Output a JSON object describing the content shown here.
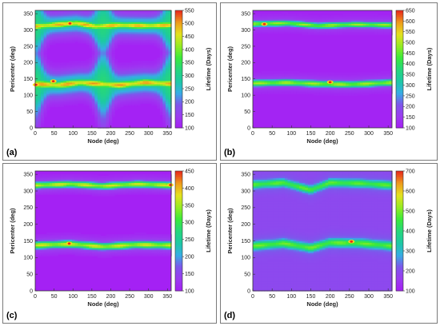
{
  "colors": {
    "scale": [
      "#a51ff4",
      "#9b3cf0",
      "#7f55ec",
      "#36aee4",
      "#1dc9a4",
      "#26d67c",
      "#3bea3a",
      "#96ec22",
      "#e4e21e",
      "#ee9b1c",
      "#e8271c"
    ],
    "highlight": "#ffd21c",
    "hotspot": "#e8271c"
  },
  "chart_data": [
    {
      "type": "heatmap",
      "panel_label": "(a)",
      "xlabel": "Node (deg)",
      "ylabel": "Pericenter (deg)",
      "colorbar_label": "Lifetime (Days)",
      "x_ticks": [
        "0",
        "50",
        "100",
        "150",
        "200",
        "250",
        "300",
        "350"
      ],
      "y_ticks": [
        "0",
        "50",
        "100",
        "150",
        "200",
        "250",
        "300",
        "350"
      ],
      "xlim": [
        0,
        360
      ],
      "ylim": [
        0,
        360
      ],
      "colorbar_ticks": [
        "100",
        "150",
        "200",
        "250",
        "300",
        "350",
        "400",
        "450",
        "500",
        "550"
      ],
      "colorbar_range": [
        100,
        550
      ],
      "bands": [
        {
          "center": [
            [
              0,
              136
            ],
            [
              60,
              132
            ],
            [
              120,
              140
            ],
            [
              170,
              136
            ],
            [
              220,
              132
            ],
            [
              290,
              140
            ],
            [
              360,
              136
            ]
          ],
          "width": 13,
          "spread": 38,
          "halo": 0.85,
          "wide_at_nodes": [
            0,
            180,
            360
          ],
          "peak": 480
        },
        {
          "center": [
            [
              0,
              312
            ],
            [
              60,
              318
            ],
            [
              110,
              322
            ],
            [
              160,
              312
            ],
            [
              220,
              316
            ],
            [
              300,
              314
            ],
            [
              360,
              316
            ]
          ],
          "width": 12,
          "spread": 34,
          "halo": 0.85,
          "wide_at_nodes": [
            0,
            180,
            360
          ],
          "peak": 470
        }
      ],
      "background": 105,
      "hotspots": [
        {
          "node": 2,
          "pericenter": 132
        },
        {
          "node": 48,
          "pericenter": 143
        },
        {
          "node": 92,
          "pericenter": 320
        }
      ]
    },
    {
      "type": "heatmap",
      "panel_label": "(b)",
      "xlabel": "Node (deg)",
      "ylabel": "Pericenter (deg)",
      "colorbar_label": "Lifetime (Days)",
      "x_ticks": [
        "0",
        "50",
        "100",
        "150",
        "200",
        "250",
        "300",
        "350"
      ],
      "y_ticks": [
        "0",
        "50",
        "100",
        "150",
        "200",
        "250",
        "300",
        "350"
      ],
      "xlim": [
        0,
        360
      ],
      "ylim": [
        0,
        360
      ],
      "colorbar_ticks": [
        "100",
        "150",
        "200",
        "250",
        "300",
        "350",
        "400",
        "450",
        "500",
        "550",
        "600",
        "650"
      ],
      "colorbar_range": [
        100,
        650
      ],
      "bands": [
        {
          "center": [
            [
              0,
              138
            ],
            [
              90,
              140
            ],
            [
              170,
              136
            ],
            [
              250,
              134
            ],
            [
              360,
              140
            ]
          ],
          "width": 10,
          "spread": 22,
          "halo": 0.35,
          "wide_at_nodes": [],
          "peak": 480
        },
        {
          "center": [
            [
              0,
              320
            ],
            [
              90,
              322
            ],
            [
              170,
              314
            ],
            [
              260,
              318
            ],
            [
              360,
              316
            ]
          ],
          "width": 9,
          "spread": 20,
          "halo": 0.35,
          "wide_at_nodes": [],
          "peak": 470
        }
      ],
      "background": 110,
      "hotspots": [
        {
          "node": 30,
          "pericenter": 318
        },
        {
          "node": 200,
          "pericenter": 140
        }
      ]
    },
    {
      "type": "heatmap",
      "panel_label": "(c)",
      "xlabel": "Node (deg)",
      "ylabel": "Pericenter (deg)",
      "colorbar_label": "Lifetime (Days)",
      "x_ticks": [
        "0",
        "50",
        "100",
        "150",
        "200",
        "250",
        "300",
        "350"
      ],
      "y_ticks": [
        "0",
        "50",
        "100",
        "150",
        "200",
        "250",
        "300",
        "350"
      ],
      "xlim": [
        0,
        360
      ],
      "ylim": [
        0,
        360
      ],
      "colorbar_ticks": [
        "100",
        "150",
        "200",
        "250",
        "300",
        "350",
        "400",
        "450"
      ],
      "colorbar_range": [
        100,
        450
      ],
      "bands": [
        {
          "center": [
            [
              0,
              138
            ],
            [
              90,
              142
            ],
            [
              180,
              134
            ],
            [
              270,
              140
            ],
            [
              360,
              138
            ]
          ],
          "width": 11,
          "spread": 24,
          "halo": 0.4,
          "wide_at_nodes": [],
          "peak": 360
        },
        {
          "center": [
            [
              0,
              318
            ],
            [
              90,
              322
            ],
            [
              180,
              316
            ],
            [
              270,
              322
            ],
            [
              360,
              318
            ]
          ],
          "width": 10,
          "spread": 22,
          "halo": 0.4,
          "wide_at_nodes": [],
          "peak": 360
        }
      ],
      "background": 102,
      "hotspots": [
        {
          "node": 90,
          "pericenter": 142
        },
        {
          "node": 358,
          "pericenter": 318
        }
      ]
    },
    {
      "type": "heatmap",
      "panel_label": "(d)",
      "xlabel": "Node (deg)",
      "ylabel": "Pericenter (deg)",
      "colorbar_label": "Lifetime (Days)",
      "x_ticks": [
        "0",
        "50",
        "100",
        "150",
        "200",
        "250",
        "300",
        "350"
      ],
      "y_ticks": [
        "0",
        "50",
        "100",
        "150",
        "200",
        "250",
        "300",
        "350"
      ],
      "xlim": [
        0,
        360
      ],
      "ylim": [
        0,
        360
      ],
      "colorbar_ticks": [
        "100",
        "200",
        "300",
        "400",
        "500",
        "600",
        "700"
      ],
      "colorbar_range": [
        100,
        700
      ],
      "bands": [
        {
          "center": [
            [
              0,
              136
            ],
            [
              80,
              144
            ],
            [
              150,
              130
            ],
            [
              200,
              146
            ],
            [
              280,
              144
            ],
            [
              360,
              136
            ]
          ],
          "width": 12,
          "spread": 26,
          "halo": 0.4,
          "wide_at_nodes": [],
          "peak": 480
        },
        {
          "center": [
            [
              0,
              320
            ],
            [
              80,
              326
            ],
            [
              150,
              304
            ],
            [
              200,
              326
            ],
            [
              280,
              324
            ],
            [
              360,
              318
            ]
          ],
          "width": 11,
          "spread": 24,
          "halo": 0.4,
          "wide_at_nodes": [],
          "peak": 470
        }
      ],
      "background": 190,
      "hotspots": [
        {
          "node": 255,
          "pericenter": 148
        }
      ]
    }
  ]
}
